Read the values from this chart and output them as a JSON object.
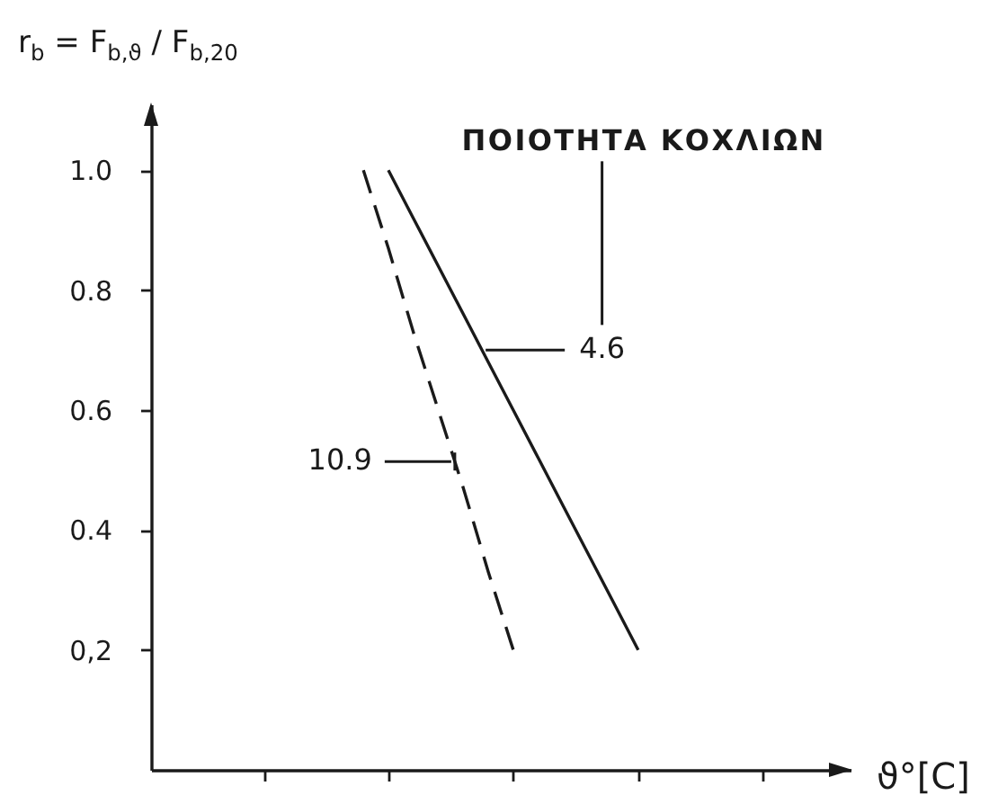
{
  "chart_data": {
    "type": "line",
    "xlabel": "ϑ°[C]",
    "ylabel": "r$_{b}$ = F$_{b,ϑ}$ / F$_{b,20}$",
    "legend_title": "ΠΟΙΟΤΗΤΑ ΚΟΧΛΙΩΝ",
    "categories": [
      null,
      null,
      null,
      null,
      null,
      null,
      null,
      null,
      null,
      null,
      null,
      null,
      null,
      null,
      null,
      null,
      null,
      null,
      null,
      null,
      null,
      null,
      null,
      null,
      null,
      null,
      null,
      null
    ],
    "ylim": [
      0,
      1.11
    ],
    "yticks": [
      {
        "value": 0.2,
        "label": "0,2"
      },
      0.4,
      0.6,
      0.8,
      {
        "value": 1,
        "label": "1.0"
      }
    ],
    "series": [
      {
        "name": "4.6",
        "color": "#1a1a1a",
        "line_style": "solid",
        "values": [
          null,
          null,
          null,
          null,
          null,
          null,
          null,
          null,
          null,
          1.0,
          0.92,
          0.84,
          0.76,
          0.68,
          0.6,
          0.52,
          0.44,
          0.36,
          0.28,
          0.2,
          null,
          null,
          null,
          null,
          null,
          null,
          null,
          null
        ]
      },
      {
        "name": "10.9",
        "color": "#1a1a1a",
        "line_style": "dashed",
        "values": [
          null,
          null,
          null,
          null,
          null,
          null,
          null,
          null,
          1.0,
          0.87,
          0.73,
          0.6,
          0.47,
          0.33,
          0.2,
          null,
          null,
          null,
          null,
          null,
          null,
          null,
          null,
          null,
          null,
          null,
          null,
          null
        ]
      }
    ]
  }
}
